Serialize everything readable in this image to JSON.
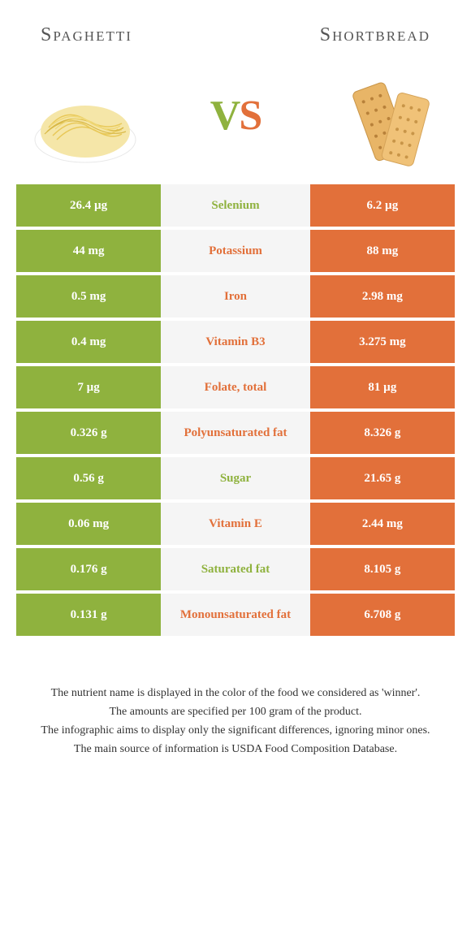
{
  "header": {
    "left": "Spaghetti",
    "right": "Shortbread",
    "vs_v": "V",
    "vs_s": "S"
  },
  "colors": {
    "green": "#8fb23e",
    "orange": "#e2703a",
    "mid_bg": "#f5f5f5",
    "white": "#ffffff"
  },
  "rows": [
    {
      "left": "26.4 µg",
      "nutrient": "Selenium",
      "right": "6.2 µg",
      "winner": "green"
    },
    {
      "left": "44 mg",
      "nutrient": "Potassium",
      "right": "88 mg",
      "winner": "orange"
    },
    {
      "left": "0.5 mg",
      "nutrient": "Iron",
      "right": "2.98 mg",
      "winner": "orange"
    },
    {
      "left": "0.4 mg",
      "nutrient": "Vitamin B3",
      "right": "3.275 mg",
      "winner": "orange"
    },
    {
      "left": "7 µg",
      "nutrient": "Folate, total",
      "right": "81 µg",
      "winner": "orange"
    },
    {
      "left": "0.326 g",
      "nutrient": "Polyunsaturated fat",
      "right": "8.326 g",
      "winner": "orange"
    },
    {
      "left": "0.56 g",
      "nutrient": "Sugar",
      "right": "21.65 g",
      "winner": "green"
    },
    {
      "left": "0.06 mg",
      "nutrient": "Vitamin E",
      "right": "2.44 mg",
      "winner": "orange"
    },
    {
      "left": "0.176 g",
      "nutrient": "Saturated fat",
      "right": "8.105 g",
      "winner": "green"
    },
    {
      "left": "0.131 g",
      "nutrient": "Monounsaturated fat",
      "right": "6.708 g",
      "winner": "orange"
    }
  ],
  "footer": {
    "line1": "The nutrient name is displayed in the color of the food we considered as 'winner'.",
    "line2": "The amounts are specified per 100 gram of the product.",
    "line3": "The infographic aims to display only the significant differences, ignoring minor ones.",
    "line4": "The main source of information is USDA Food Composition Database."
  }
}
